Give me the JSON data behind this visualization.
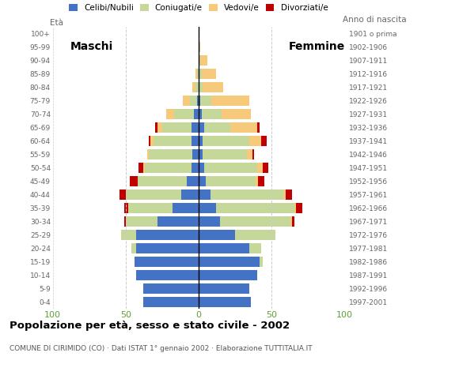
{
  "age_groups": [
    "0-4",
    "5-9",
    "10-14",
    "15-19",
    "20-24",
    "25-29",
    "30-34",
    "35-39",
    "40-44",
    "45-49",
    "50-54",
    "55-59",
    "60-64",
    "65-69",
    "70-74",
    "75-79",
    "80-84",
    "85-89",
    "90-94",
    "95-99",
    "100+"
  ],
  "birth_years": [
    "1997-2001",
    "1992-1996",
    "1987-1991",
    "1982-1986",
    "1977-1981",
    "1972-1976",
    "1967-1971",
    "1962-1966",
    "1957-1961",
    "1952-1956",
    "1947-1951",
    "1942-1946",
    "1937-1941",
    "1932-1936",
    "1927-1931",
    "1922-1926",
    "1917-1921",
    "1912-1916",
    "1907-1911",
    "1902-1906",
    "1901 o prima"
  ],
  "males_celibe": [
    38,
    38,
    43,
    44,
    43,
    43,
    28,
    18,
    12,
    8,
    5,
    4,
    5,
    5,
    3,
    1,
    0,
    0,
    0,
    0,
    0
  ],
  "males_coniugato": [
    0,
    0,
    0,
    0,
    3,
    10,
    22,
    30,
    38,
    34,
    32,
    30,
    26,
    20,
    14,
    5,
    2,
    1,
    0,
    0,
    0
  ],
  "males_vedovo": [
    0,
    0,
    0,
    0,
    0,
    0,
    0,
    0,
    0,
    0,
    1,
    1,
    2,
    3,
    5,
    5,
    2,
    1,
    0,
    0,
    0
  ],
  "males_divorziato": [
    0,
    0,
    0,
    0,
    0,
    0,
    1,
    3,
    4,
    5,
    3,
    0,
    1,
    2,
    0,
    0,
    0,
    0,
    0,
    0,
    0
  ],
  "females_nubile": [
    36,
    35,
    40,
    42,
    35,
    25,
    15,
    12,
    8,
    5,
    4,
    3,
    3,
    4,
    2,
    1,
    0,
    0,
    0,
    0,
    0
  ],
  "females_coniugata": [
    0,
    0,
    0,
    2,
    8,
    28,
    48,
    54,
    50,
    34,
    36,
    30,
    32,
    18,
    14,
    8,
    3,
    2,
    1,
    0,
    0
  ],
  "females_vedova": [
    0,
    0,
    0,
    0,
    0,
    0,
    1,
    1,
    2,
    2,
    4,
    4,
    8,
    18,
    20,
    26,
    14,
    10,
    5,
    1,
    0
  ],
  "females_divorziata": [
    0,
    0,
    0,
    0,
    0,
    0,
    2,
    4,
    4,
    4,
    4,
    1,
    4,
    2,
    0,
    0,
    0,
    0,
    0,
    0,
    0
  ],
  "color_celibe": "#4472C4",
  "color_coniugato": "#C5D89A",
  "color_vedovo": "#F7C97A",
  "color_divorziato": "#C00000",
  "title": "Popolazione per età, sesso e stato civile - 2002",
  "subtitle": "COMUNE DI CIRIMIDO (CO) · Dati ISTAT 1° gennaio 2002 · Elaborazione TUTTITALIA.IT",
  "label_maschi": "Maschi",
  "label_femmine": "Femmine",
  "label_eta": "Età",
  "label_anno": "Anno di nascita",
  "legend_labels": [
    "Celibi/Nubili",
    "Coniugati/e",
    "Vedovi/e",
    "Divorziati/e"
  ],
  "xlim": 100,
  "bg_color": "#ffffff",
  "grid_color": "#cccccc",
  "tick_color": "#5CA038"
}
